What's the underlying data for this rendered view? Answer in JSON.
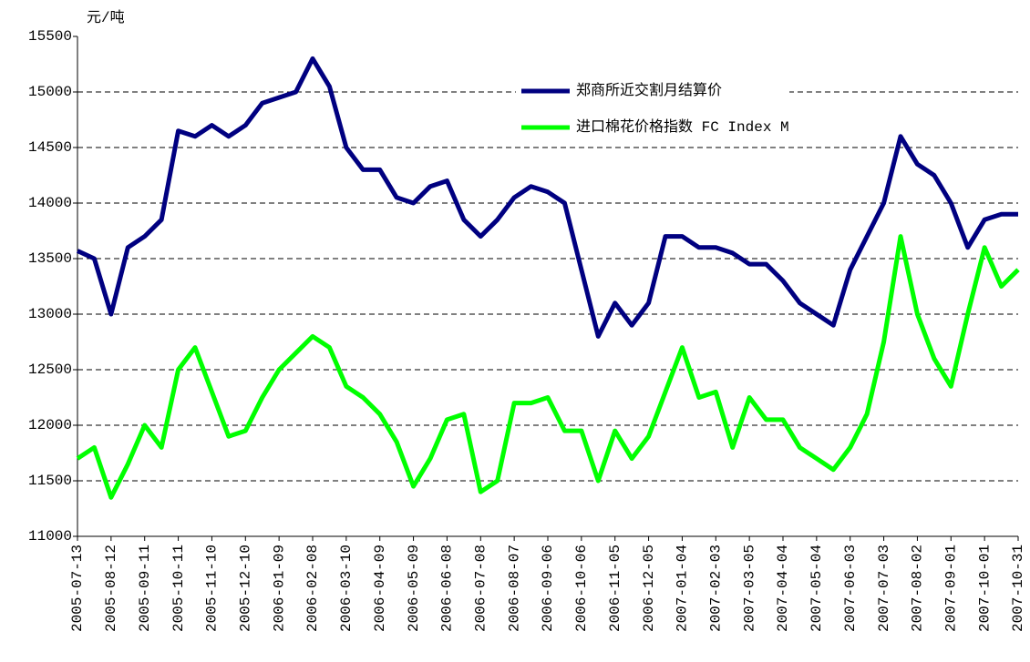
{
  "chart_data": {
    "type": "line",
    "y_label": "元/吨",
    "categories": [
      "2005-07-13",
      null,
      "2005-08-12",
      null,
      "2005-09-11",
      null,
      "2005-10-11",
      null,
      "2005-11-10",
      null,
      "2005-12-10",
      null,
      "2006-01-09",
      null,
      "2006-02-08",
      null,
      "2006-03-10",
      null,
      "2006-04-09",
      null,
      "2006-05-09",
      null,
      "2006-06-08",
      null,
      "2006-07-08",
      null,
      "2006-08-07",
      null,
      "2006-09-06",
      null,
      "2006-10-06",
      null,
      "2006-11-05",
      null,
      "2006-12-05",
      null,
      "2007-01-04",
      null,
      "2007-02-03",
      null,
      "2007-03-05",
      null,
      "2007-04-04",
      null,
      "2007-05-04",
      null,
      "2007-06-03",
      null,
      "2007-07-03",
      null,
      "2007-08-02",
      null,
      "2007-09-01",
      null,
      "2007-10-01",
      null,
      "2007-10-31"
    ],
    "series": [
      {
        "name": "郑商所近交割月结算价",
        "color": "#000080",
        "values": [
          13570,
          13500,
          13000,
          13600,
          13700,
          13850,
          14650,
          14600,
          14700,
          14600,
          14700,
          14900,
          14950,
          15000,
          15300,
          15050,
          14500,
          14300,
          14300,
          14050,
          14000,
          14150,
          14200,
          13850,
          13700,
          13850,
          14050,
          14150,
          14100,
          14000,
          13400,
          12800,
          13100,
          12900,
          13100,
          13700,
          13700,
          13600,
          13600,
          13550,
          13450,
          13450,
          13300,
          13100,
          13000,
          12900,
          13400,
          13700,
          14000,
          14600,
          14350,
          14250,
          14000,
          13600,
          13850,
          13900,
          13900
        ]
      },
      {
        "name": "进口棉花价格指数 FC Index M",
        "color": "#00ff00",
        "values": [
          11700,
          11800,
          11350,
          11650,
          12000,
          11800,
          12500,
          12700,
          12300,
          11900,
          11950,
          12250,
          12500,
          12650,
          12800,
          12700,
          12350,
          12250,
          12100,
          11850,
          11450,
          11700,
          12050,
          12100,
          11400,
          11500,
          12200,
          12200,
          12250,
          11950,
          11950,
          11500,
          11950,
          11700,
          11900,
          12300,
          12700,
          12250,
          12300,
          11800,
          12250,
          12050,
          12050,
          11800,
          11700,
          11600,
          11800,
          12100,
          12750,
          13700,
          13000,
          12600,
          12350,
          13000,
          13600,
          13250,
          13400
        ]
      }
    ],
    "ylim": [
      11000,
      15500
    ],
    "yticks": [
      11000,
      11500,
      12000,
      12500,
      13000,
      13500,
      14000,
      14500,
      15000,
      15500
    ],
    "grid": true
  }
}
